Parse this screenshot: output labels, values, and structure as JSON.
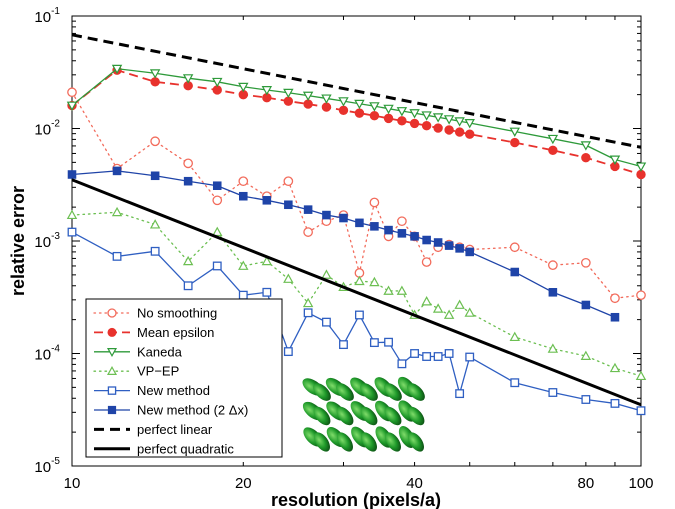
{
  "chart_data": {
    "type": "line",
    "xlabel": "resolution (pixels/a)",
    "ylabel": "relative error",
    "xscale": "log",
    "yscale": "log",
    "xlim": [
      10,
      100
    ],
    "ylim": [
      1e-05,
      0.1
    ],
    "x_ticks": [
      10,
      20,
      40,
      80,
      100
    ],
    "y_ticks": [
      {
        "value": 0.1,
        "base": "10",
        "exp": "-1"
      },
      {
        "value": 0.01,
        "base": "10",
        "exp": "-2"
      },
      {
        "value": 0.001,
        "base": "10",
        "exp": "-3"
      },
      {
        "value": 0.0001,
        "base": "10",
        "exp": "-4"
      },
      {
        "value": 1e-05,
        "base": "10",
        "exp": "-5"
      }
    ],
    "grid": false,
    "legend_position": "bottom-left",
    "series": [
      {
        "name": "No smoothing",
        "color": "#f26b5b",
        "line": "dotted",
        "marker": "open-circle",
        "x": [
          10,
          12,
          14,
          16,
          18,
          20,
          22,
          24,
          26,
          28,
          30,
          32,
          34,
          36,
          38,
          40,
          42,
          44,
          46,
          48,
          50,
          60,
          70,
          80,
          90,
          100
        ],
        "y": [
          0.021,
          0.0044,
          0.0077,
          0.0049,
          0.0023,
          0.0034,
          0.0025,
          0.0034,
          0.0012,
          0.0015,
          0.0017,
          0.00052,
          0.0022,
          0.0011,
          0.0015,
          0.0011,
          0.00065,
          0.00088,
          0.00093,
          0.00088,
          0.00084,
          0.00088,
          0.00061,
          0.00064,
          0.00031,
          0.00033
        ]
      },
      {
        "name": "Mean epsilon",
        "color": "#e8322d",
        "line": "dashed",
        "marker": "filled-circle",
        "x": [
          10,
          12,
          14,
          16,
          18,
          20,
          22,
          24,
          26,
          28,
          30,
          32,
          34,
          36,
          38,
          40,
          42,
          44,
          46,
          48,
          50,
          60,
          70,
          80,
          90,
          100
        ],
        "y": [
          0.016,
          0.033,
          0.026,
          0.024,
          0.022,
          0.02,
          0.0188,
          0.0175,
          0.0165,
          0.0155,
          0.0145,
          0.0137,
          0.013,
          0.0123,
          0.0117,
          0.0111,
          0.0106,
          0.0101,
          0.0097,
          0.0093,
          0.0089,
          0.0075,
          0.0064,
          0.0055,
          0.0046,
          0.0039
        ]
      },
      {
        "name": "Kaneda",
        "color": "#2e9a3a",
        "line": "solid",
        "marker": "open-triangle-down",
        "x": [
          10,
          12,
          14,
          16,
          18,
          20,
          22,
          24,
          26,
          28,
          30,
          32,
          34,
          36,
          38,
          40,
          42,
          44,
          46,
          48,
          50,
          60,
          70,
          80,
          90,
          100
        ],
        "y": [
          0.016,
          0.034,
          0.031,
          0.028,
          0.026,
          0.0235,
          0.022,
          0.0208,
          0.0196,
          0.0185,
          0.0175,
          0.0166,
          0.0158,
          0.015,
          0.0143,
          0.0137,
          0.0131,
          0.0126,
          0.0121,
          0.0116,
          0.0112,
          0.0094,
          0.0081,
          0.0071,
          0.0053,
          0.0046
        ]
      },
      {
        "name": "VP−EP",
        "color": "#6cbf52",
        "line": "dotted",
        "marker": "open-triangle-up",
        "x": [
          10,
          12,
          14,
          16,
          18,
          20,
          22,
          24,
          26,
          28,
          30,
          32,
          34,
          36,
          38,
          40,
          42,
          44,
          46,
          48,
          50,
          60,
          70,
          80,
          90,
          100
        ],
        "y": [
          0.0017,
          0.0018,
          0.0014,
          0.00066,
          0.0012,
          0.0006,
          0.00066,
          0.00046,
          0.00028,
          0.0005,
          0.00039,
          0.00044,
          0.00043,
          0.00036,
          0.00036,
          0.00022,
          0.00029,
          0.00025,
          0.00022,
          0.00027,
          0.00023,
          0.00014,
          0.00011,
          9.5e-05,
          7.4e-05,
          6.3e-05
        ]
      },
      {
        "name": "New method",
        "color": "#2f5fc2",
        "line": "solid",
        "marker": "open-square",
        "x": [
          10,
          12,
          14,
          16,
          18,
          20,
          22,
          24,
          26,
          28,
          30,
          32,
          34,
          36,
          38,
          40,
          42,
          44,
          46,
          48,
          50,
          60,
          70,
          80,
          90,
          100
        ],
        "y": [
          0.0012,
          0.00073,
          0.00081,
          0.0004,
          0.0006,
          0.00033,
          0.00035,
          0.000104,
          0.00023,
          0.00019,
          0.00012,
          0.00022,
          0.000125,
          0.000126,
          8.1e-05,
          0.0001,
          9.4e-05,
          9.4e-05,
          0.0001,
          4.4e-05,
          9.3e-05,
          5.5e-05,
          4.5e-05,
          3.9e-05,
          3.6e-05,
          3.1e-05
        ]
      },
      {
        "name": "New method (2 Δx)",
        "color": "#1f44a8",
        "line": "solid",
        "marker": "filled-square",
        "x": [
          10,
          12,
          14,
          16,
          18,
          20,
          22,
          24,
          26,
          28,
          30,
          32,
          34,
          36,
          38,
          40,
          42,
          44,
          46,
          48,
          50,
          60,
          70,
          80,
          90
        ],
        "y": [
          0.0039,
          0.0042,
          0.0038,
          0.0034,
          0.0031,
          0.0025,
          0.0023,
          0.0021,
          0.0019,
          0.0017,
          0.0016,
          0.00145,
          0.00135,
          0.00125,
          0.00117,
          0.0011,
          0.00102,
          0.00097,
          0.00091,
          0.00086,
          0.0008,
          0.00053,
          0.00035,
          0.00027,
          0.00021
        ]
      },
      {
        "name": "perfect linear",
        "color": "#000000",
        "line": "dashed-bold",
        "marker": "none",
        "x": [
          10,
          100
        ],
        "y": [
          0.068,
          0.0068
        ]
      },
      {
        "name": "perfect quadratic",
        "color": "#000000",
        "line": "solid-bold",
        "marker": "none",
        "x": [
          10,
          100
        ],
        "y": [
          0.0035,
          3.5e-05
        ]
      }
    ]
  }
}
